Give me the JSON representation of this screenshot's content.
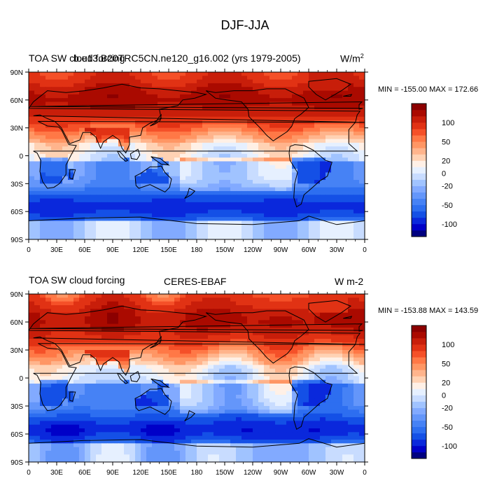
{
  "figure_title": "DJF-JJA",
  "colorbar_levels": [
    -140,
    -120,
    -100,
    -80,
    -60,
    -50,
    -40,
    -30,
    -20,
    -10,
    0,
    10,
    20,
    30,
    40,
    50,
    60,
    80,
    100,
    120,
    140
  ],
  "colorbar_colors": [
    "#000080",
    "#0000c8",
    "#0a28dc",
    "#1450e6",
    "#2d6ef0",
    "#4682f5",
    "#6496fa",
    "#82aaff",
    "#a0c3ff",
    "#c8dcff",
    "#e6f0ff",
    "#fff0e6",
    "#ffd2b4",
    "#ffb48c",
    "#ff9664",
    "#ff7846",
    "#f55028",
    "#e13214",
    "#c81e0a",
    "#aa0a00",
    "#8c0000"
  ],
  "colorbar_labels": [
    {
      "level": -100,
      "text": "-100"
    },
    {
      "level": -50,
      "text": "-50"
    },
    {
      "level": -20,
      "text": "-20"
    },
    {
      "level": 0,
      "text": "0"
    },
    {
      "level": 20,
      "text": "20"
    },
    {
      "level": 50,
      "text": "50"
    },
    {
      "level": 100,
      "text": "100"
    }
  ],
  "chart_data": [
    {
      "type": "heatmap",
      "title_left": "TOA SW cloud forcing",
      "title_center": "b.e13.B20TRC5CN.ne120_g16.002 (yrs 1979-2005)",
      "units": "W/m",
      "units_superscript": "2",
      "min_max": "MIN = -155.00 MAX = 172.66",
      "min": -155.0,
      "max": 172.66,
      "x_ticks": [
        "0",
        "30E",
        "60E",
        "90E",
        "120E",
        "150E",
        "180",
        "150W",
        "120W",
        "90W",
        "60W",
        "30W",
        "0"
      ],
      "y_ticks": [
        "90N",
        "60N",
        "30N",
        "0",
        "30S",
        "60S",
        "90S"
      ],
      "xlim": [
        0,
        360
      ],
      "ylim": [
        -90,
        90
      ],
      "variant": "model"
    },
    {
      "type": "heatmap",
      "title_left": "TOA SW cloud forcing",
      "title_center": "CERES-EBAF",
      "units": "W m-2",
      "units_superscript": "",
      "min_max": "MIN = -153.88 MAX = 143.59",
      "min": -153.88,
      "max": 143.59,
      "x_ticks": [
        "0",
        "30E",
        "60E",
        "90E",
        "120E",
        "150E",
        "180",
        "150W",
        "120W",
        "90W",
        "60W",
        "30W",
        "0"
      ],
      "y_ticks": [
        "90N",
        "60N",
        "30N",
        "0",
        "30S",
        "60S",
        "90S"
      ],
      "xlim": [
        0,
        360
      ],
      "ylim": [
        -90,
        90
      ],
      "variant": "obs"
    }
  ]
}
